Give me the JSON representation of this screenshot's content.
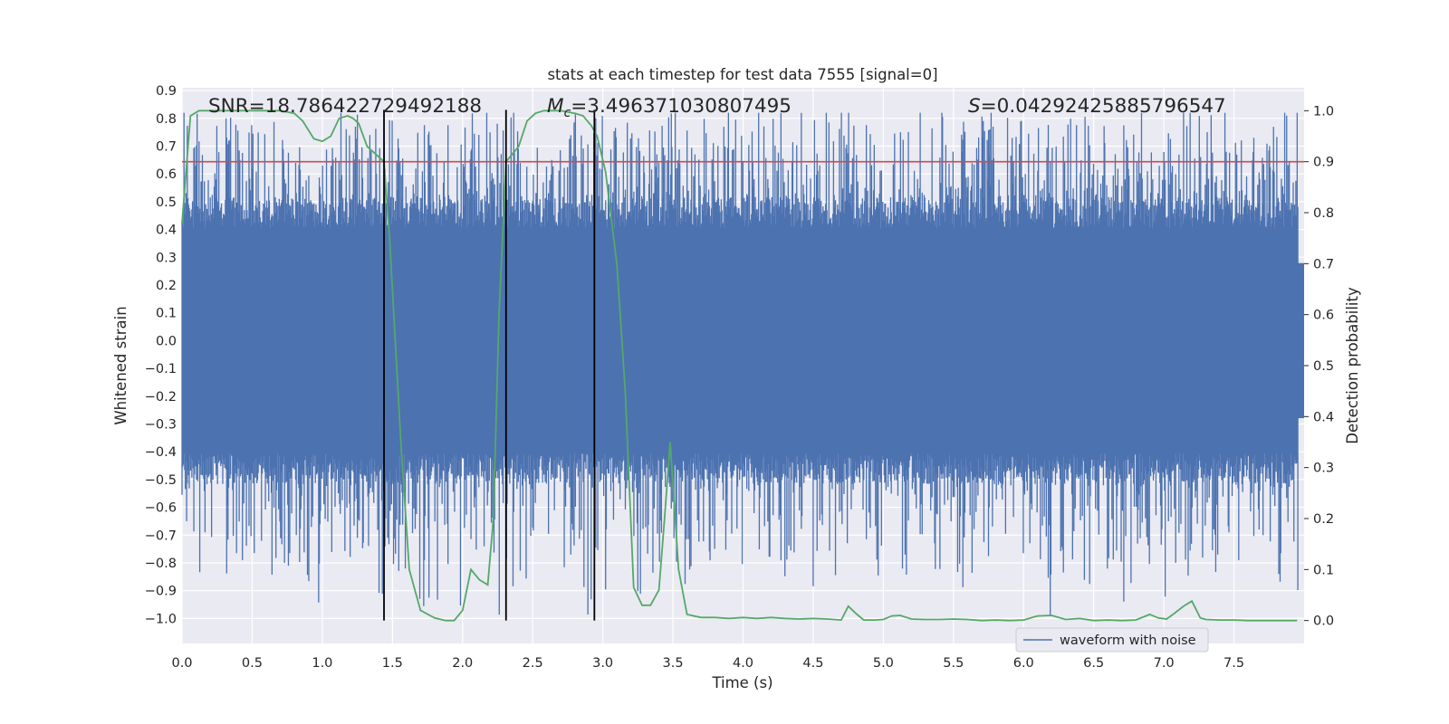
{
  "chart_data": {
    "type": "line",
    "title": "stats at each timestep for test data 7555 [signal=0]",
    "xlabel": "Time (s)",
    "ylabel_left": "Whitened strain",
    "ylabel_right": "Detection probability",
    "xlim": [
      0.0,
      8.0
    ],
    "ylim_left": [
      -1.09,
      0.91
    ],
    "ylim_right": [
      -0.045,
      1.045
    ],
    "x_ticks": [
      "0.0",
      "0.5",
      "1.0",
      "1.5",
      "2.0",
      "2.5",
      "3.0",
      "3.5",
      "4.0",
      "4.5",
      "5.0",
      "5.5",
      "6.0",
      "6.5",
      "7.0",
      "7.5"
    ],
    "y_ticks_left": [
      "0.9",
      "0.8",
      "0.7",
      "0.6",
      "0.5",
      "0.4",
      "0.3",
      "0.2",
      "0.1",
      "0.0",
      "−0.1",
      "−0.2",
      "−0.3",
      "−0.4",
      "−0.5",
      "−0.6",
      "−0.7",
      "−0.8",
      "−0.9",
      "−1.0"
    ],
    "y_ticks_right": [
      "1.0",
      "0.9",
      "0.8",
      "0.7",
      "0.6",
      "0.5",
      "0.4",
      "0.3",
      "0.2",
      "0.1",
      "0.0"
    ],
    "annotations": {
      "snr": "SNR=18.786422729492188",
      "mc_symbol": "M",
      "mc_sub": "c",
      "mc_value": "=3.496371030807495",
      "s_symbol": "S",
      "s_value": "=0.04292425885796547"
    },
    "threshold": {
      "value": 0.9,
      "axis": "right",
      "color": "#c44e52"
    },
    "vertical_lines": [
      1.44,
      2.31,
      2.94
    ],
    "series": [
      {
        "name": "waveform with noise",
        "axis": "left",
        "color": "#4c72b0",
        "kind": "noise",
        "core_amplitude": 0.45,
        "peak_range": [
          -1.0,
          0.82
        ]
      },
      {
        "axis": "right",
        "color": "#55a868",
        "x": [
          0.0,
          0.06,
          0.12,
          0.2,
          0.3,
          0.4,
          0.5,
          0.6,
          0.7,
          0.8,
          0.86,
          0.94,
          1.0,
          1.06,
          1.12,
          1.18,
          1.22,
          1.26,
          1.32,
          1.38,
          1.44,
          1.48,
          1.52,
          1.56,
          1.62,
          1.7,
          1.8,
          1.88,
          1.94,
          2.0,
          2.06,
          2.12,
          2.18,
          2.22,
          2.26,
          2.31,
          2.34,
          2.4,
          2.46,
          2.52,
          2.58,
          2.7,
          2.8,
          2.86,
          2.92,
          2.96,
          3.02,
          3.1,
          3.16,
          3.22,
          3.28,
          3.34,
          3.4,
          3.44,
          3.48,
          3.54,
          3.6,
          3.7,
          3.8,
          3.9,
          4.0,
          4.1,
          4.2,
          4.3,
          4.4,
          4.5,
          4.6,
          4.7,
          4.75,
          4.8,
          4.86,
          4.94,
          5.0,
          5.06,
          5.12,
          5.2,
          5.3,
          5.4,
          5.5,
          5.6,
          5.7,
          5.8,
          5.9,
          6.0,
          6.1,
          6.2,
          6.3,
          6.4,
          6.5,
          6.6,
          6.7,
          6.8,
          6.9,
          6.96,
          7.02,
          7.08,
          7.14,
          7.2,
          7.26,
          7.3,
          7.4,
          7.5,
          7.6,
          7.7,
          7.8,
          7.9,
          7.95
        ],
        "y": [
          0.78,
          0.99,
          1.0,
          1.0,
          1.0,
          1.0,
          1.0,
          1.0,
          1.0,
          0.995,
          0.98,
          0.945,
          0.94,
          0.95,
          0.985,
          0.99,
          0.985,
          0.975,
          0.93,
          0.915,
          0.9,
          0.75,
          0.55,
          0.35,
          0.1,
          0.02,
          0.005,
          0.0,
          0.0,
          0.02,
          0.1,
          0.08,
          0.07,
          0.2,
          0.6,
          0.9,
          0.91,
          0.93,
          0.98,
          0.995,
          1.0,
          1.0,
          0.995,
          0.99,
          0.97,
          0.95,
          0.88,
          0.7,
          0.45,
          0.065,
          0.03,
          0.03,
          0.06,
          0.2,
          0.35,
          0.1,
          0.012,
          0.006,
          0.006,
          0.004,
          0.006,
          0.004,
          0.006,
          0.004,
          0.003,
          0.004,
          0.003,
          0.001,
          0.028,
          0.015,
          0.001,
          0.001,
          0.002,
          0.009,
          0.01,
          0.003,
          0.002,
          0.002,
          0.003,
          0.002,
          0.0,
          0.001,
          0.0,
          0.001,
          0.009,
          0.01,
          0.002,
          0.004,
          0.0,
          0.001,
          0.0,
          0.001,
          0.012,
          0.005,
          0.003,
          0.015,
          0.028,
          0.038,
          0.005,
          0.002,
          0.001,
          0.001,
          0.0,
          0.0,
          0.0,
          0.0,
          0.0
        ]
      }
    ],
    "legend": {
      "label": "waveform with noise",
      "placement": "lower-right"
    },
    "colors": {
      "axes_bg": "#eaeaf2",
      "grid": "#ffffff",
      "noise": "#4c72b0",
      "prob": "#55a868",
      "threshold": "#c44e52",
      "vlines": "#000000"
    }
  }
}
